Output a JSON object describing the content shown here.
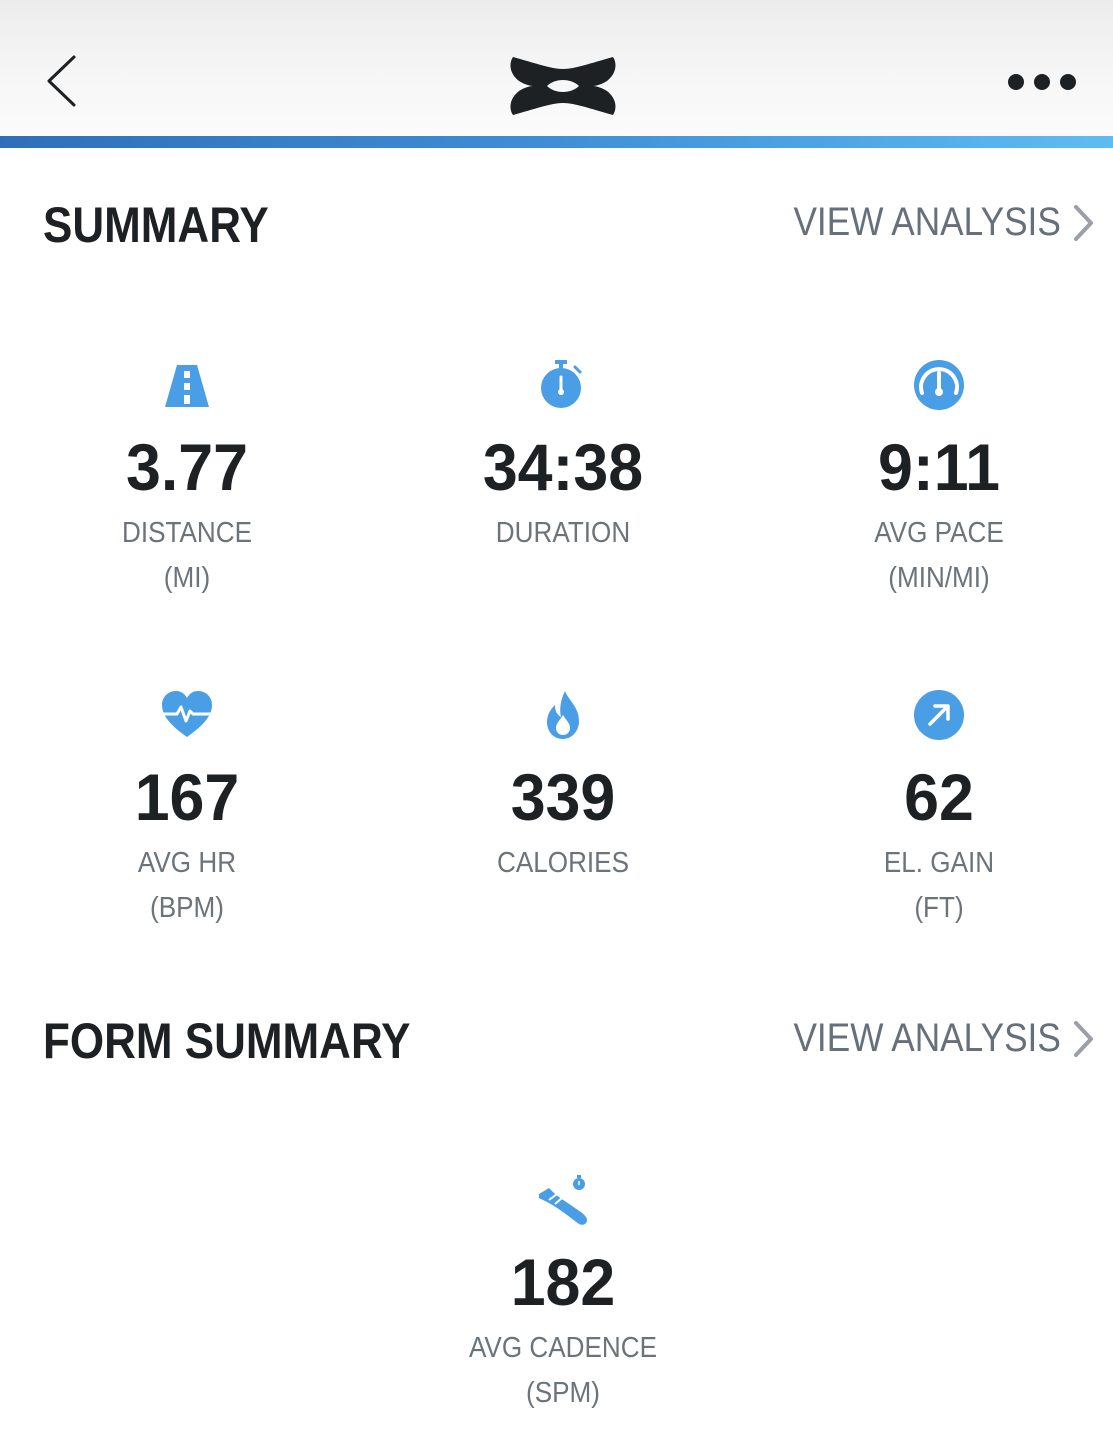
{
  "header": {
    "back_icon": "chevron-left-icon",
    "logo": "under-armour-logo",
    "more_icon": "more-horizontal-icon",
    "accent_color": "#3f8fd6"
  },
  "summary": {
    "title": "SUMMARY",
    "view_analysis": "VIEW ANALYSIS",
    "stats": [
      {
        "icon": "road-icon",
        "value": "3.77",
        "label": "DISTANCE",
        "unit": "(MI)"
      },
      {
        "icon": "stopwatch-icon",
        "value": "34:38",
        "label": "DURATION",
        "unit": ""
      },
      {
        "icon": "speedometer-icon",
        "value": "9:11",
        "label": "AVG PACE",
        "unit": "(MIN/MI)"
      },
      {
        "icon": "heart-rate-icon",
        "value": "167",
        "label": "AVG HR",
        "unit": "(BPM)"
      },
      {
        "icon": "flame-icon",
        "value": "339",
        "label": "CALORIES",
        "unit": ""
      },
      {
        "icon": "elevation-arrow-icon",
        "value": "62",
        "label": "EL. GAIN",
        "unit": "(FT)"
      }
    ]
  },
  "form_summary": {
    "title": "FORM SUMMARY",
    "view_analysis": "VIEW ANALYSIS",
    "stats": [
      {
        "icon": "shoe-cadence-icon",
        "value": "182",
        "label": "AVG CADENCE",
        "unit": "(SPM)"
      }
    ]
  },
  "colors": {
    "icon_blue": "#4a9ee6",
    "text_dark": "#1e2124",
    "text_gray": "#6b737b"
  }
}
